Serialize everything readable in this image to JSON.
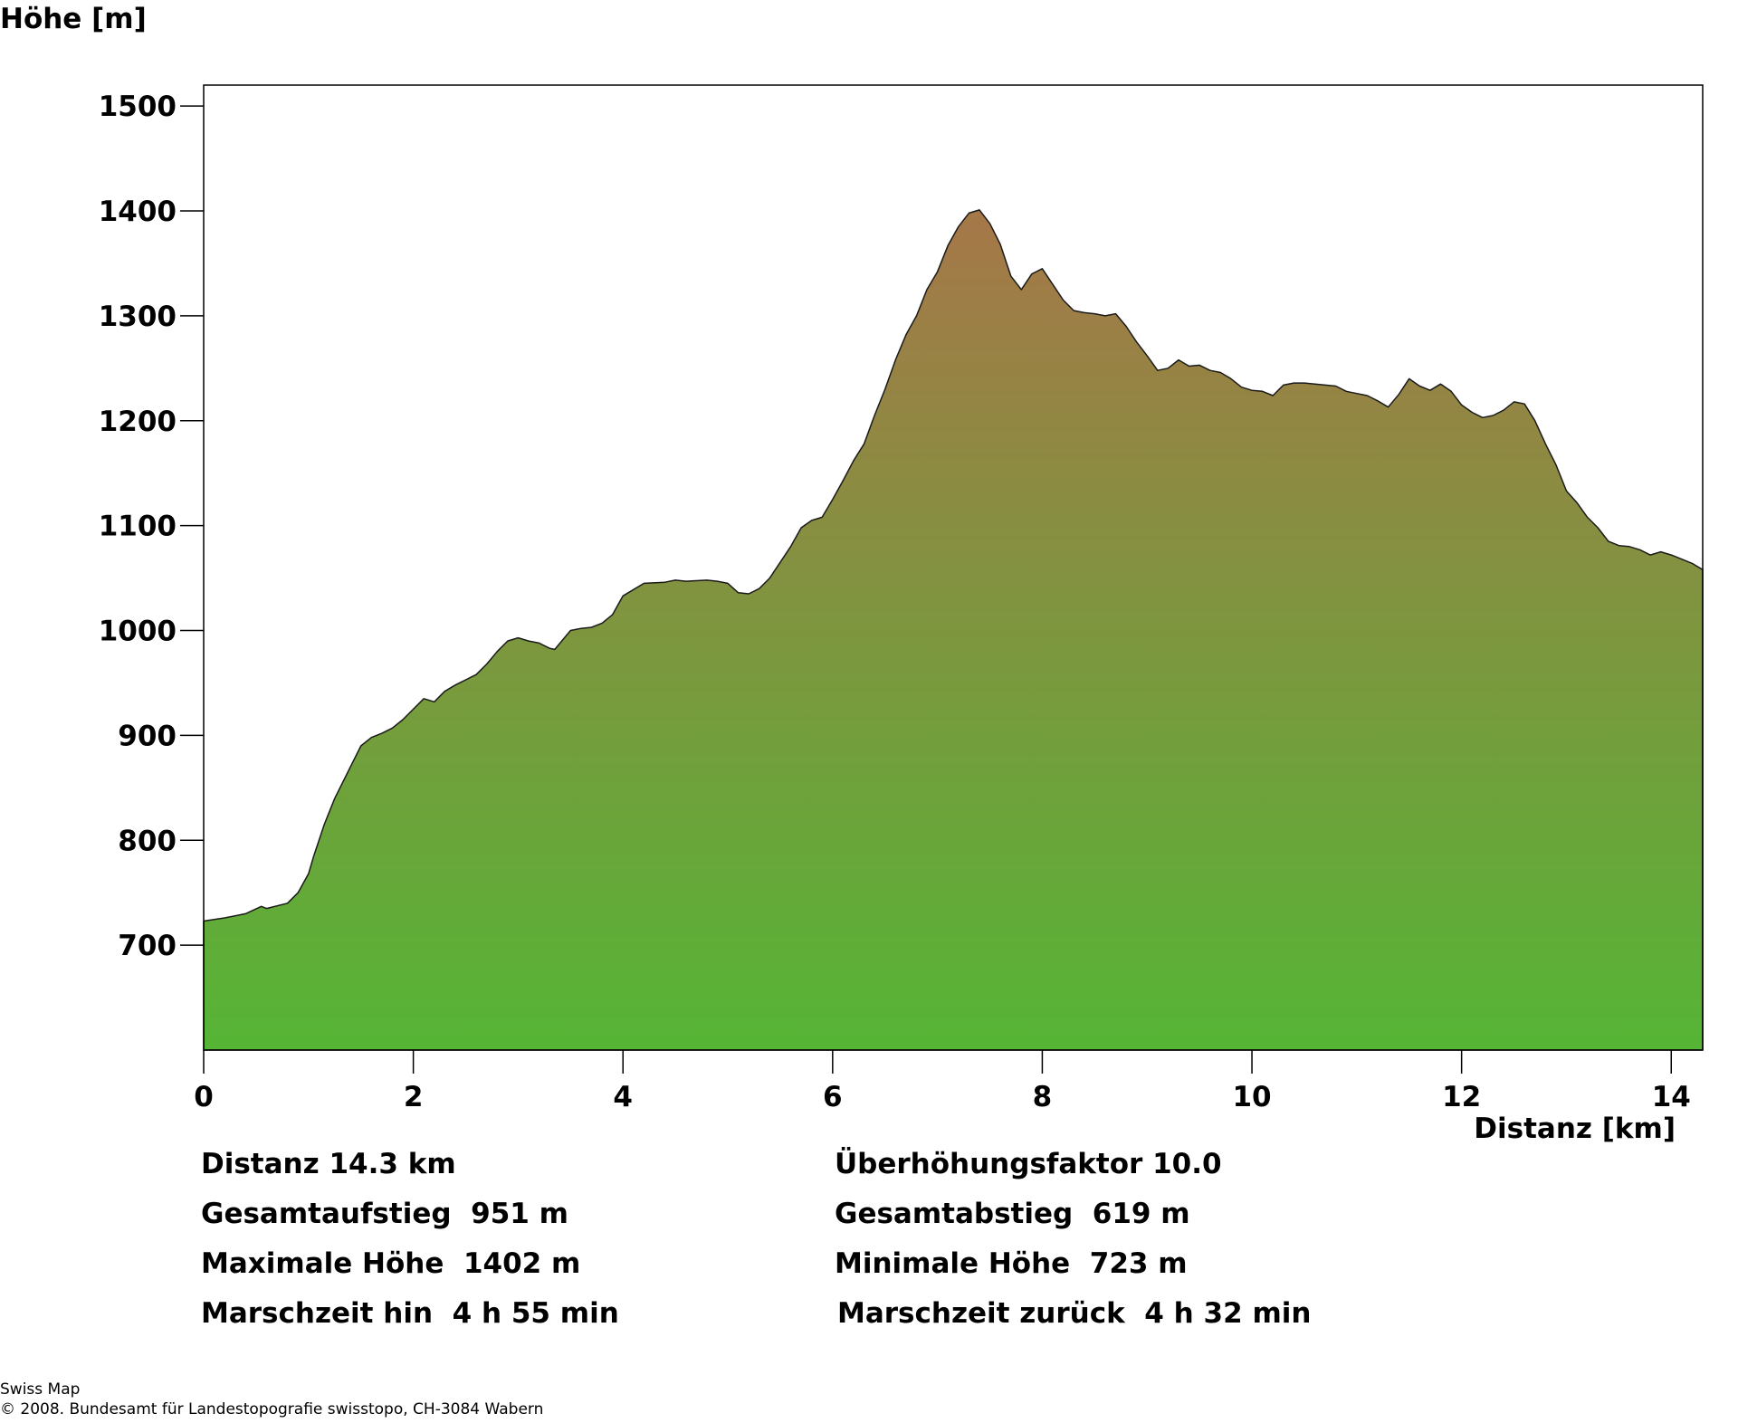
{
  "chart_data": {
    "type": "area",
    "xlabel": "Distanz [km]",
    "ylabel": "Höhe [m]",
    "xlim": [
      0,
      14.3
    ],
    "ylim": [
      600,
      1520
    ],
    "xticks": [
      0,
      2,
      4,
      6,
      8,
      10,
      12,
      14
    ],
    "yticks": [
      700,
      800,
      900,
      1000,
      1100,
      1200,
      1300,
      1400,
      1500
    ],
    "grid": false,
    "fill_gradient": {
      "top": "#a67748",
      "bottom": "#55b535"
    },
    "series": [
      {
        "x": [
          0,
          0.2,
          0.4,
          0.55,
          0.6,
          0.8,
          0.9,
          1.0,
          1.05,
          1.15,
          1.25,
          1.4,
          1.5,
          1.6,
          1.7,
          1.8,
          1.9,
          2.0,
          2.1,
          2.2,
          2.3,
          2.4,
          2.5,
          2.6,
          2.7,
          2.8,
          2.9,
          3.0,
          3.1,
          3.2,
          3.3,
          3.35,
          3.4,
          3.5,
          3.6,
          3.7,
          3.8,
          3.9,
          4.0,
          4.2,
          4.4,
          4.5,
          4.6,
          4.8,
          4.9,
          5.0,
          5.1,
          5.2,
          5.3,
          5.4,
          5.5,
          5.6,
          5.7,
          5.8,
          5.9,
          6.0,
          6.1,
          6.2,
          6.3,
          6.4,
          6.5,
          6.6,
          6.7,
          6.8,
          6.9,
          7.0,
          7.1,
          7.2,
          7.3,
          7.4,
          7.5,
          7.6,
          7.7,
          7.8,
          7.9,
          8.0,
          8.1,
          8.2,
          8.3,
          8.4,
          8.5,
          8.6,
          8.7,
          8.8,
          8.9,
          9.0,
          9.1,
          9.2,
          9.3,
          9.4,
          9.5,
          9.6,
          9.7,
          9.8,
          9.9,
          10.0,
          10.1,
          10.2,
          10.3,
          10.4,
          10.5,
          10.6,
          10.7,
          10.8,
          10.9,
          11.0,
          11.1,
          11.2,
          11.3,
          11.4,
          11.5,
          11.6,
          11.7,
          11.8,
          11.9,
          12.0,
          12.1,
          12.2,
          12.3,
          12.4,
          12.5,
          12.6,
          12.7,
          12.8,
          12.9,
          13.0,
          13.1,
          13.2,
          13.3,
          13.4,
          13.5,
          13.6,
          13.7,
          13.8,
          13.9,
          14.0,
          14.1,
          14.2,
          14.3
        ],
        "y": [
          723,
          726,
          730,
          737,
          735,
          740,
          750,
          768,
          785,
          815,
          840,
          870,
          890,
          898,
          902,
          907,
          915,
          925,
          935,
          932,
          942,
          948,
          953,
          958,
          968,
          980,
          990,
          993,
          990,
          988,
          983,
          982,
          988,
          1000,
          1002,
          1003,
          1007,
          1015,
          1033,
          1045,
          1046,
          1048,
          1047,
          1048,
          1047,
          1045,
          1036,
          1035,
          1040,
          1050,
          1065,
          1080,
          1098,
          1105,
          1108,
          1125,
          1143,
          1162,
          1178,
          1205,
          1230,
          1258,
          1282,
          1300,
          1325,
          1342,
          1367,
          1385,
          1398,
          1401,
          1388,
          1368,
          1338,
          1325,
          1340,
          1345,
          1330,
          1315,
          1305,
          1303,
          1302,
          1300,
          1302,
          1290,
          1275,
          1262,
          1248,
          1250,
          1258,
          1252,
          1253,
          1248,
          1246,
          1240,
          1232,
          1229,
          1228,
          1224,
          1234,
          1236,
          1236,
          1235,
          1234,
          1233,
          1228,
          1226,
          1224,
          1219,
          1213,
          1225,
          1240,
          1233,
          1229,
          1235,
          1228,
          1215,
          1208,
          1203,
          1205,
          1210,
          1218,
          1216,
          1200,
          1178,
          1158,
          1133,
          1122,
          1108,
          1098,
          1085,
          1081,
          1080,
          1077,
          1072,
          1075,
          1072,
          1068,
          1064,
          1058
        ]
      }
    ]
  },
  "stats": {
    "distanz": "Distanz 14.3 km",
    "gesamtaufstieg": "Gesamtaufstieg  951 m",
    "maximale_hoehe": "Maximale Höhe  1402 m",
    "marschzeit_hin": "Marschzeit hin  4 h 55 min",
    "ueberhoehung": "Überhöhungsfaktor 10.0",
    "gesamtabstieg": "Gesamtabstieg  619 m",
    "minimale_hoehe": "Minimale Höhe  723 m",
    "marschzeit_zurueck": "Marschzeit zurück  4 h 32 min"
  },
  "footer": {
    "line1": "Swiss Map",
    "line2": "© 2008. Bundesamt für Landestopografie swisstopo, CH-3084 Wabern"
  }
}
